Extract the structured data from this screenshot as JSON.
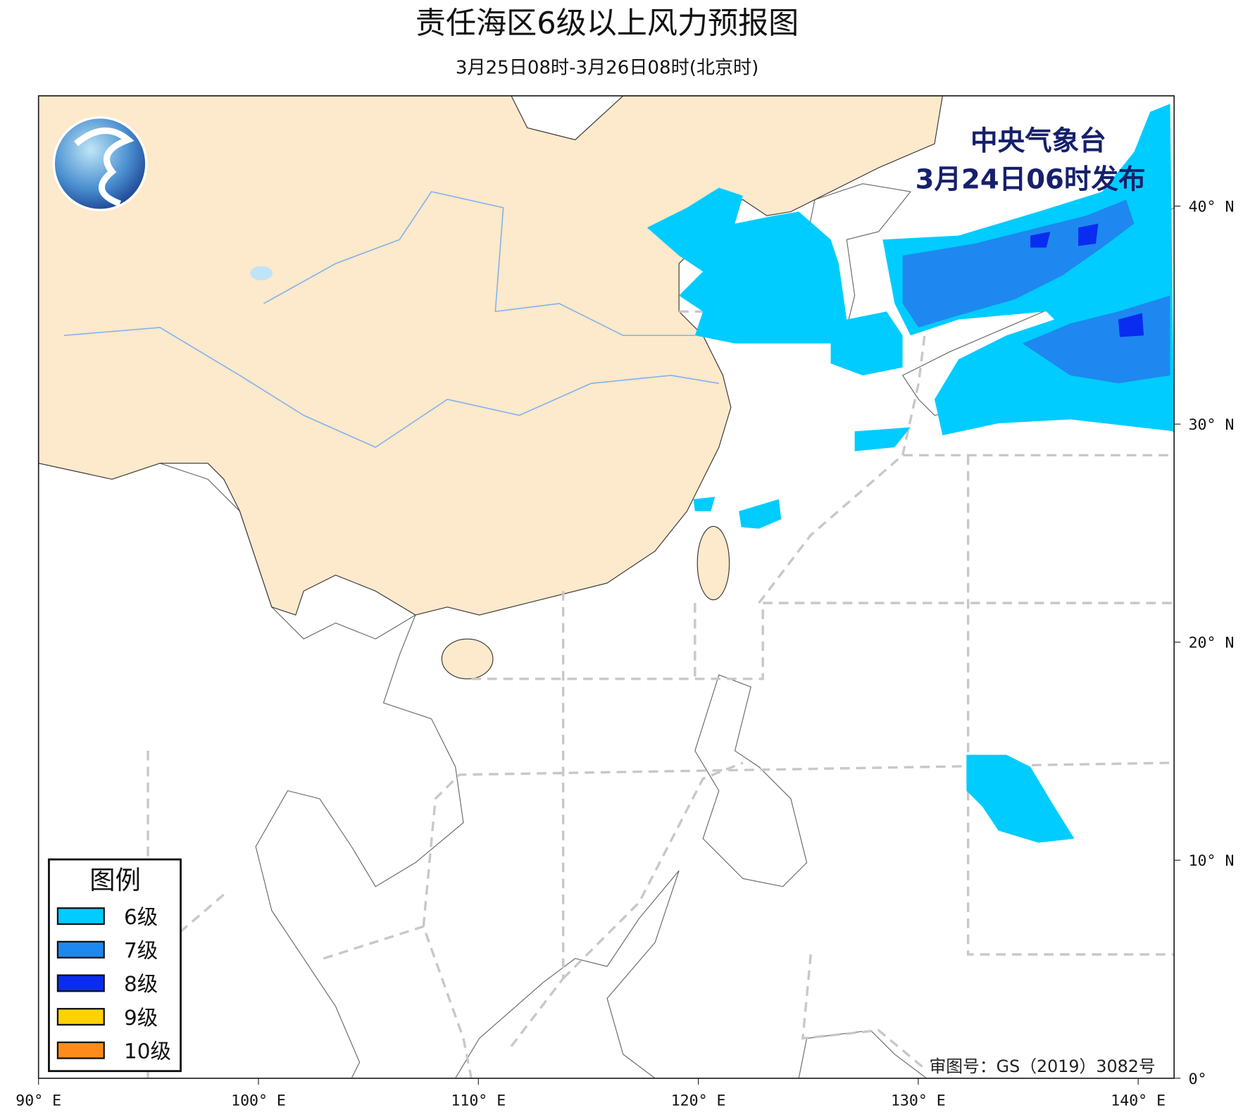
{
  "header": {
    "title": "责任海区6级以上风力预报图",
    "subtitle": "3月25日08时-3月26日08时(北京时)"
  },
  "issuer": {
    "name": "中央气象台",
    "time": "3月24日06时发布"
  },
  "legend": {
    "title": "图例",
    "items": [
      {
        "label": "6级",
        "color": "#00ccff"
      },
      {
        "label": "7级",
        "color": "#1e88f0"
      },
      {
        "label": "8级",
        "color": "#0a2cf0"
      },
      {
        "label": "9级",
        "color": "#ffd200"
      },
      {
        "label": "10级",
        "color": "#ff8c1a"
      }
    ]
  },
  "axes": {
    "x_labels": [
      "90° E",
      "100° E",
      "110° E",
      "120° E",
      "130° E",
      "140° E"
    ],
    "y_labels": [
      "0°",
      "10° N",
      "20° N",
      "30° N",
      "40° N"
    ]
  },
  "footer": "审图号：GS（2019）3082号"
}
